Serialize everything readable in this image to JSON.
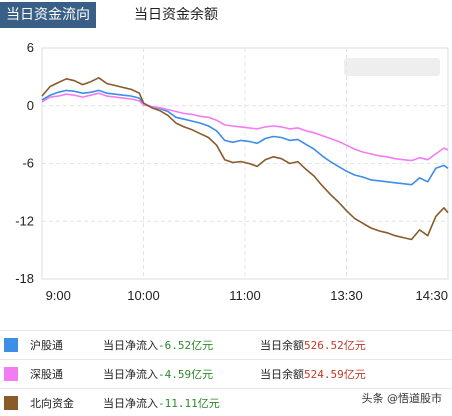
{
  "tabs": [
    {
      "label": "当日资金流向",
      "active": true
    },
    {
      "label": "当日资金余额",
      "active": false
    }
  ],
  "chart_data": {
    "type": "line",
    "x_ticks": [
      "9:00",
      "10:00",
      "11:00",
      "13:30",
      "14:30"
    ],
    "y_ticks": [
      "6",
      "0",
      "-6",
      "-12",
      "-18"
    ],
    "ylim": [
      -18,
      6
    ],
    "grid": true,
    "series": [
      {
        "name": "沪股通",
        "color": "#3d8ee6",
        "x": [
          0,
          2,
          4,
          6,
          8,
          10,
          12,
          14,
          16,
          18,
          20,
          22,
          24,
          25,
          27,
          29,
          31,
          33,
          35,
          37,
          39,
          41,
          43,
          45,
          47,
          49,
          51,
          53,
          55,
          57,
          59,
          61,
          63,
          65,
          67,
          69,
          71,
          73,
          75,
          77,
          79,
          81,
          83,
          85,
          87,
          89,
          91,
          93,
          95,
          97,
          99,
          100
        ],
        "values": [
          0.6,
          1.1,
          1.4,
          1.6,
          1.5,
          1.3,
          1.4,
          1.6,
          1.3,
          1.2,
          1.1,
          1.0,
          0.8,
          0.2,
          -0.1,
          -0.3,
          -0.6,
          -1.2,
          -1.4,
          -1.6,
          -1.8,
          -2.1,
          -2.6,
          -3.6,
          -3.8,
          -3.6,
          -3.7,
          -3.9,
          -3.4,
          -3.2,
          -3.3,
          -3.6,
          -3.5,
          -4.0,
          -4.5,
          -5.2,
          -5.8,
          -6.3,
          -6.8,
          -7.2,
          -7.4,
          -7.7,
          -7.8,
          -7.9,
          -8.0,
          -8.1,
          -8.2,
          -7.5,
          -7.9,
          -6.5,
          -6.2,
          -6.5
        ]
      },
      {
        "name": "深股通",
        "color": "#f27cf2",
        "x": [
          0,
          2,
          4,
          6,
          8,
          10,
          12,
          14,
          16,
          18,
          20,
          22,
          24,
          25,
          27,
          29,
          31,
          33,
          35,
          37,
          39,
          41,
          43,
          45,
          47,
          49,
          51,
          53,
          55,
          57,
          59,
          61,
          63,
          65,
          67,
          69,
          71,
          73,
          75,
          77,
          79,
          81,
          83,
          85,
          87,
          89,
          91,
          93,
          95,
          97,
          99,
          100
        ],
        "values": [
          0.4,
          0.9,
          1.0,
          1.2,
          1.1,
          0.9,
          1.1,
          1.3,
          1.0,
          0.9,
          0.8,
          0.7,
          0.5,
          0.1,
          -0.1,
          -0.2,
          -0.4,
          -0.6,
          -0.8,
          -0.9,
          -1.1,
          -1.2,
          -1.5,
          -2.0,
          -2.1,
          -2.2,
          -2.3,
          -2.4,
          -2.2,
          -2.1,
          -2.2,
          -2.4,
          -2.3,
          -2.6,
          -2.8,
          -3.1,
          -3.4,
          -3.7,
          -4.1,
          -4.5,
          -4.8,
          -5.0,
          -5.2,
          -5.3,
          -5.5,
          -5.6,
          -5.7,
          -5.4,
          -5.6,
          -5.0,
          -4.4,
          -4.6
        ]
      },
      {
        "name": "北向资金",
        "color": "#8a5a2b",
        "x": [
          0,
          2,
          4,
          6,
          8,
          10,
          12,
          14,
          16,
          18,
          20,
          22,
          24,
          25,
          27,
          29,
          31,
          33,
          35,
          37,
          39,
          41,
          43,
          45,
          47,
          49,
          51,
          53,
          55,
          57,
          59,
          61,
          63,
          65,
          67,
          69,
          71,
          73,
          75,
          77,
          79,
          81,
          83,
          85,
          87,
          89,
          91,
          93,
          95,
          97,
          99,
          100
        ],
        "values": [
          1.0,
          2.0,
          2.4,
          2.8,
          2.6,
          2.2,
          2.5,
          2.9,
          2.3,
          2.1,
          1.9,
          1.7,
          1.3,
          0.3,
          -0.2,
          -0.5,
          -1.0,
          -1.8,
          -2.2,
          -2.5,
          -2.9,
          -3.3,
          -4.1,
          -5.6,
          -5.9,
          -5.8,
          -6.0,
          -6.3,
          -5.6,
          -5.3,
          -5.5,
          -6.0,
          -5.8,
          -6.6,
          -7.3,
          -8.3,
          -9.2,
          -10.0,
          -10.9,
          -11.7,
          -12.2,
          -12.7,
          -13.0,
          -13.2,
          -13.5,
          -13.7,
          -13.9,
          -12.9,
          -13.5,
          -11.5,
          -10.6,
          -11.1
        ]
      }
    ]
  },
  "legend": [
    {
      "name": "沪股通",
      "color": "#3d8ee6",
      "flow_label": "当日净流入",
      "flow_value": "-6.52",
      "flow_unit": "亿元",
      "balance_label": "当日余额",
      "balance_value": "526.52",
      "balance_unit": "亿元"
    },
    {
      "name": "深股通",
      "color": "#f27cf2",
      "flow_label": "当日净流入",
      "flow_value": "-4.59",
      "flow_unit": "亿元",
      "balance_label": "当日余额",
      "balance_value": "524.59",
      "balance_unit": "亿元"
    },
    {
      "name": "北向资金",
      "color": "#8a5a2b",
      "flow_label": "当日净流入",
      "flow_value": "-11.11",
      "flow_unit": "亿元",
      "balance_label": "",
      "balance_value": "",
      "balance_unit": ""
    }
  ],
  "footer": {
    "text": "头条 @悟道股市"
  }
}
